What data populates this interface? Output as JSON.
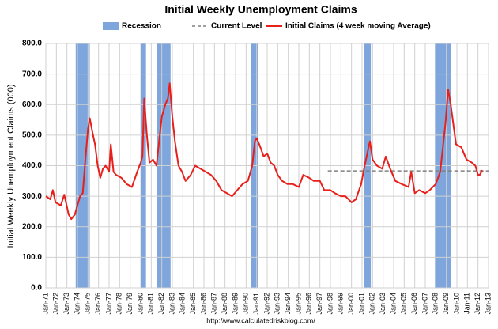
{
  "chart_data": {
    "type": "line",
    "title": "Initial Weekly Unemployment Claims",
    "ylabel": "Initial Weekly Unemployment Claims (000)",
    "source": "http://www.calculatedriskblog.com/",
    "ylim": [
      0,
      800
    ],
    "yticks": [
      {
        "value": 0,
        "label": "0.0"
      },
      {
        "value": 100,
        "label": "100.0"
      },
      {
        "value": 200,
        "label": "200.0"
      },
      {
        "value": 300,
        "label": "300.0"
      },
      {
        "value": 400,
        "label": "400.0"
      },
      {
        "value": 500,
        "label": "500.0"
      },
      {
        "value": 600,
        "label": "600.0"
      },
      {
        "value": 700,
        "label": "700.0"
      },
      {
        "value": 800,
        "label": "800.0"
      }
    ],
    "xlim": [
      "1971-01",
      "2013-01"
    ],
    "xticks": [
      {
        "value": "1971-01",
        "label": "Jan-71"
      },
      {
        "value": "1972-01",
        "label": "Jan-72"
      },
      {
        "value": "1973-01",
        "label": "Jan-73"
      },
      {
        "value": "1974-01",
        "label": "Jan-74"
      },
      {
        "value": "1975-01",
        "label": "Jan-75"
      },
      {
        "value": "1976-01",
        "label": "Jan-76"
      },
      {
        "value": "1977-01",
        "label": "Jan-77"
      },
      {
        "value": "1978-01",
        "label": "Jan-78"
      },
      {
        "value": "1979-01",
        "label": "Jan-79"
      },
      {
        "value": "1980-01",
        "label": "Jan-80"
      },
      {
        "value": "1981-01",
        "label": "Jan-81"
      },
      {
        "value": "1982-01",
        "label": "Jan-82"
      },
      {
        "value": "1983-01",
        "label": "Jan-83"
      },
      {
        "value": "1984-01",
        "label": "Jan-84"
      },
      {
        "value": "1985-01",
        "label": "Jan-85"
      },
      {
        "value": "1986-01",
        "label": "Jan-86"
      },
      {
        "value": "1987-01",
        "label": "Jan-87"
      },
      {
        "value": "1988-01",
        "label": "Jan-88"
      },
      {
        "value": "1989-01",
        "label": "Jan-89"
      },
      {
        "value": "1990-01",
        "label": "Jan-90"
      },
      {
        "value": "1991-01",
        "label": "Jan-91"
      },
      {
        "value": "1992-01",
        "label": "Jan-92"
      },
      {
        "value": "1993-01",
        "label": "Jan-93"
      },
      {
        "value": "1994-01",
        "label": "Jan-94"
      },
      {
        "value": "1995-01",
        "label": "Jan-95"
      },
      {
        "value": "1996-01",
        "label": "Jan-96"
      },
      {
        "value": "1997-01",
        "label": "Jan-97"
      },
      {
        "value": "1998-01",
        "label": "Jan-98"
      },
      {
        "value": "1999-01",
        "label": "Jan-99"
      },
      {
        "value": "2000-01",
        "label": "Jan-00"
      },
      {
        "value": "2001-01",
        "label": "Jan-01"
      },
      {
        "value": "2002-01",
        "label": "Jan-02"
      },
      {
        "value": "2003-01",
        "label": "Jan-03"
      },
      {
        "value": "2004-01",
        "label": "Jan-04"
      },
      {
        "value": "2005-01",
        "label": "Jan-05"
      },
      {
        "value": "2006-01",
        "label": "Jan-06"
      },
      {
        "value": "2007-01",
        "label": "Jan-07"
      },
      {
        "value": "2008-01",
        "label": "Jan-08"
      },
      {
        "value": "2009-01",
        "label": "Jan-09"
      },
      {
        "value": "2010-01",
        "label": "Jan-10"
      },
      {
        "value": "2011-01",
        "label": "Jan-11"
      },
      {
        "value": "2012-01",
        "label": "Jan-12"
      },
      {
        "value": "2013-01",
        "label": "Jan-13"
      }
    ],
    "grid": true,
    "bands": {
      "name": "Recession",
      "color": "#7ea6dc",
      "ranges": [
        [
          "1973-11",
          "1975-03"
        ],
        [
          "1980-01",
          "1980-07"
        ],
        [
          "1981-07",
          "1982-11"
        ],
        [
          "1990-07",
          "1991-03"
        ],
        [
          "2001-03",
          "2001-11"
        ],
        [
          "2007-12",
          "2009-06"
        ]
      ]
    },
    "reference": {
      "name": "Current Level",
      "value": 383,
      "color": "#808080",
      "x": [
        "1997-10",
        "2013-01"
      ]
    },
    "series": [
      {
        "name": "Initial Claims (4 week moving Average)",
        "color": "#e8201b",
        "x": [
          "1971-01",
          "1971-06",
          "1971-09",
          "1971-12",
          "1972-06",
          "1972-10",
          "1973-03",
          "1973-06",
          "1973-10",
          "1974-01",
          "1974-04",
          "1974-07",
          "1974-10",
          "1975-01",
          "1975-03",
          "1975-06",
          "1975-09",
          "1975-12",
          "1976-03",
          "1976-06",
          "1976-09",
          "1977-01",
          "1977-03",
          "1977-06",
          "1977-09",
          "1978-03",
          "1978-09",
          "1979-03",
          "1979-09",
          "1980-01",
          "1980-03",
          "1980-05",
          "1980-08",
          "1980-11",
          "1981-03",
          "1981-07",
          "1981-10",
          "1982-01",
          "1982-05",
          "1982-08",
          "1982-10",
          "1983-01",
          "1983-04",
          "1983-08",
          "1983-12",
          "1984-04",
          "1984-10",
          "1985-03",
          "1985-09",
          "1986-03",
          "1986-09",
          "1987-03",
          "1987-09",
          "1988-03",
          "1988-09",
          "1989-03",
          "1989-09",
          "1990-03",
          "1990-08",
          "1990-11",
          "1991-01",
          "1991-04",
          "1991-09",
          "1992-01",
          "1992-05",
          "1992-09",
          "1993-01",
          "1993-06",
          "1993-12",
          "1994-06",
          "1995-01",
          "1995-06",
          "1996-01",
          "1996-06",
          "1997-01",
          "1997-06",
          "1998-01",
          "1998-06",
          "1999-01",
          "1999-06",
          "2000-01",
          "2000-06",
          "2000-12",
          "2001-04",
          "2001-10",
          "2002-01",
          "2002-06",
          "2002-12",
          "2003-04",
          "2003-09",
          "2004-03",
          "2004-10",
          "2005-06",
          "2005-09",
          "2006-01",
          "2006-06",
          "2007-01",
          "2007-06",
          "2008-01",
          "2008-06",
          "2008-12",
          "2009-03",
          "2009-06",
          "2009-12",
          "2010-06",
          "2010-12",
          "2011-06",
          "2011-10",
          "2012-01",
          "2012-03",
          "2012-06"
        ],
        "values": [
          300,
          290,
          320,
          280,
          270,
          305,
          240,
          225,
          240,
          270,
          300,
          310,
          420,
          520,
          555,
          510,
          470,
          400,
          360,
          390,
          400,
          380,
          470,
          380,
          370,
          360,
          340,
          330,
          380,
          410,
          430,
          620,
          500,
          410,
          420,
          400,
          480,
          560,
          600,
          620,
          670,
          560,
          480,
          400,
          380,
          350,
          370,
          400,
          390,
          380,
          370,
          350,
          320,
          310,
          300,
          320,
          340,
          350,
          400,
          480,
          490,
          470,
          430,
          440,
          410,
          400,
          370,
          350,
          340,
          340,
          330,
          370,
          360,
          350,
          350,
          320,
          320,
          310,
          300,
          300,
          280,
          290,
          340,
          400,
          480,
          420,
          400,
          390,
          430,
          390,
          350,
          340,
          330,
          380,
          310,
          320,
          310,
          320,
          340,
          380,
          540,
          650,
          600,
          470,
          460,
          420,
          410,
          400,
          370,
          370,
          385
        ]
      }
    ]
  }
}
